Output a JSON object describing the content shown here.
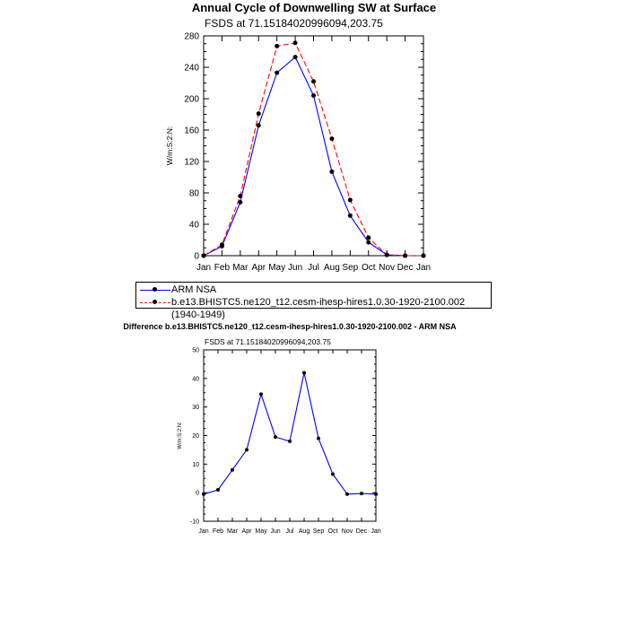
{
  "chart_data": [
    {
      "type": "line",
      "title": "Annual Cycle of Downwelling SW at Surface",
      "subtitle": "FSDS at 71.15184020996094,203.75",
      "ylabel": "W/m:S:2:N:",
      "xlabel": "",
      "ylim": [
        0,
        280
      ],
      "yticks": [
        0,
        40,
        80,
        120,
        160,
        200,
        240,
        280
      ],
      "categories": [
        "Jan",
        "Feb",
        "Mar",
        "Apr",
        "May",
        "Jun",
        "Jul",
        "Aug",
        "Sep",
        "Oct",
        "Nov",
        "Dec",
        "Jan"
      ],
      "grid": false,
      "legend_position": "bottom",
      "series": [
        {
          "name": "ARM NSA",
          "color": "#0000ff",
          "dash": "solid",
          "values": [
            0,
            12,
            68,
            166,
            233,
            253,
            204,
            107,
            51,
            17,
            1,
            0,
            0
          ]
        },
        {
          "name": "b.e13.BHISTC5.ne120_t12.cesm-ihesp-hires1.0.30-1920-2100.002 (1940-1949)",
          "color": "#ff0000",
          "dash": "dashed",
          "values": [
            0,
            14,
            76,
            181,
            267,
            271,
            222,
            149,
            71,
            23,
            1,
            0,
            0
          ]
        }
      ]
    },
    {
      "type": "line",
      "title": "Difference b.e13.BHISTC5.ne120_t12.cesm-ihesp-hires1.0.30-1920-2100.002 - ARM NSA",
      "subtitle": "FSDS at 71.15184020996094,203.75",
      "ylabel": "W/m:S:2:N:",
      "xlabel": "",
      "ylim": [
        -10,
        50
      ],
      "yticks": [
        -10,
        0,
        10,
        20,
        30,
        40,
        50
      ],
      "categories": [
        "Jan",
        "Feb",
        "Mar",
        "Apr",
        "May",
        "Jun",
        "Jul",
        "Aug",
        "Sep",
        "Oct",
        "Nov",
        "Dec",
        "Jan"
      ],
      "grid": false,
      "series": [
        {
          "color": "#0000ff",
          "dash": "solid",
          "values": [
            -0.5,
            1,
            8,
            15,
            34.5,
            19.5,
            18,
            42,
            19,
            6.5,
            -0.5,
            -0.3,
            -0.5
          ]
        }
      ]
    }
  ]
}
